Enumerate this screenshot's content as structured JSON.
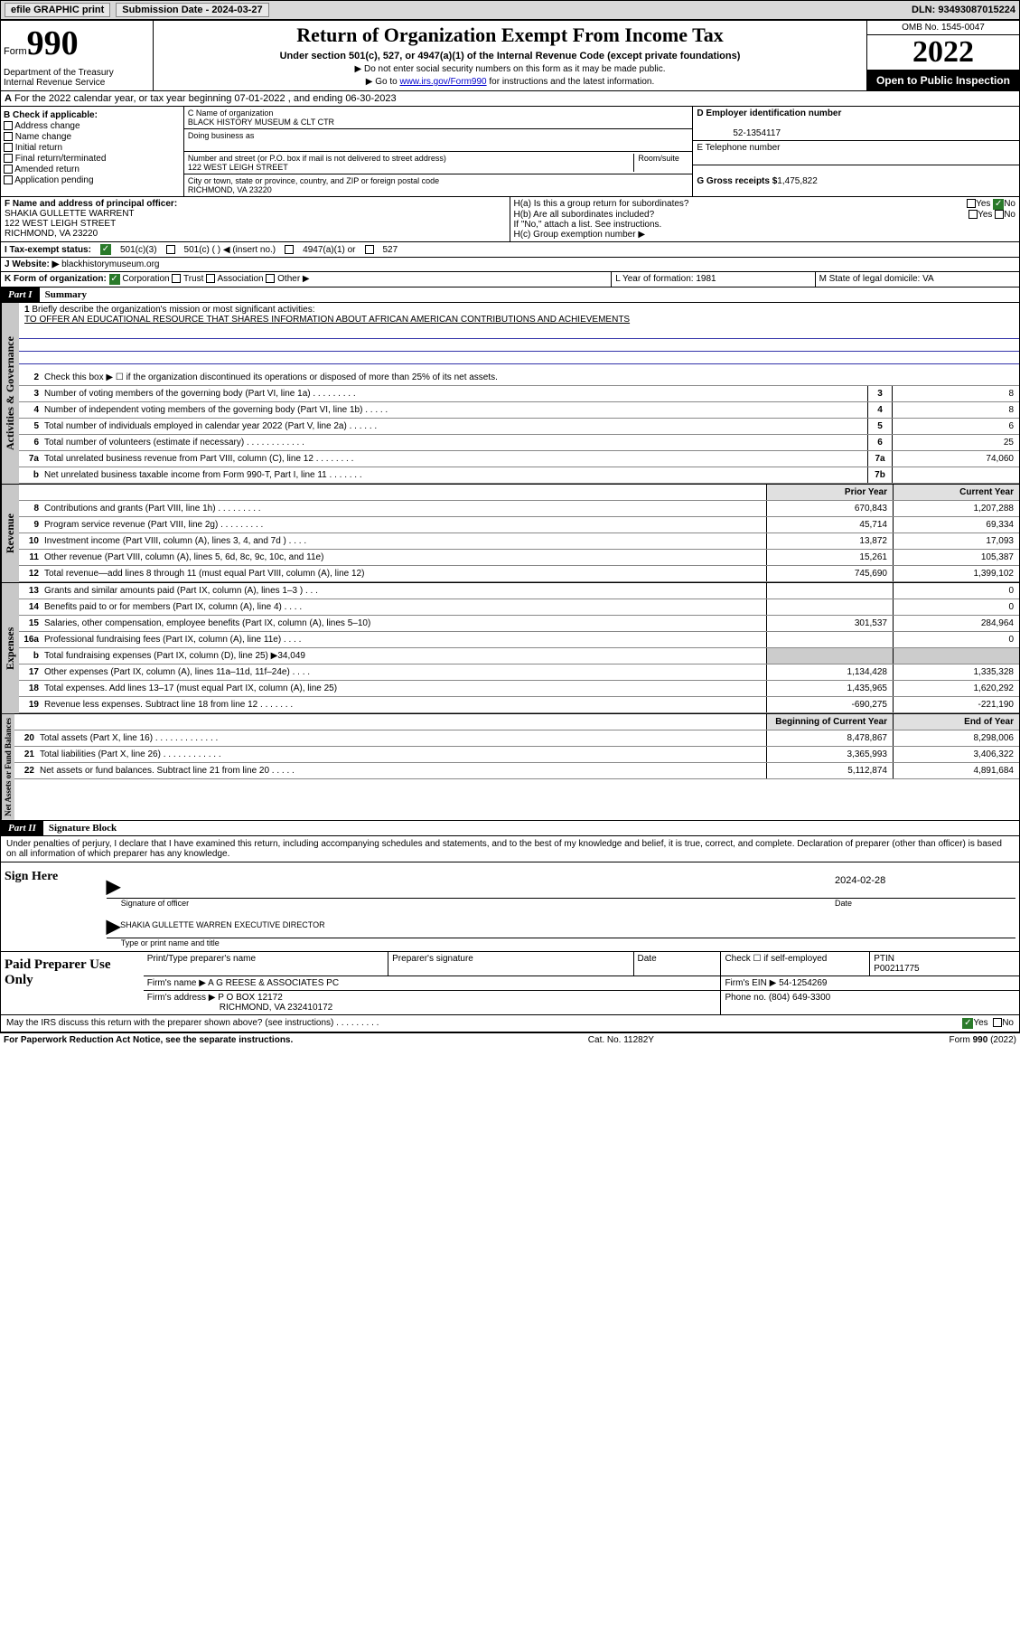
{
  "topbar": {
    "efile": "efile GRAPHIC print",
    "subdate_lbl": "Submission Date - 2024-03-27",
    "dln": "DLN: 93493087015224"
  },
  "header": {
    "form_prefix": "Form",
    "form_num": "990",
    "title": "Return of Organization Exempt From Income Tax",
    "sub": "Under section 501(c), 527, or 4947(a)(1) of the Internal Revenue Code (except private foundations)",
    "note1": "▶ Do not enter social security numbers on this form as it may be made public.",
    "note2_pre": "▶ Go to ",
    "note2_link": "www.irs.gov/Form990",
    "note2_post": " for instructions and the latest information.",
    "dept": "Department of the Treasury\nInternal Revenue Service",
    "omb": "OMB No. 1545-0047",
    "year": "2022",
    "open": "Open to Public Inspection"
  },
  "period": {
    "a": "A",
    "text": " For the 2022 calendar year, or tax year beginning 07-01-2022    , and ending 06-30-2023"
  },
  "secB": {
    "hdr": "B Check if applicable:",
    "items": [
      "Address change",
      "Name change",
      "Initial return",
      "Final return/terminated",
      "Amended return",
      "Application pending"
    ]
  },
  "secC": {
    "name_lbl": "C Name of organization",
    "name": "BLACK HISTORY MUSEUM & CLT CTR",
    "dba_lbl": "Doing business as",
    "addr_lbl": "Number and street (or P.O. box if mail is not delivered to street address)",
    "addr": "122 WEST LEIGH STREET",
    "room_lbl": "Room/suite",
    "city_lbl": "City or town, state or province, country, and ZIP or foreign postal code",
    "city": "RICHMOND, VA  23220"
  },
  "secD": {
    "ein_lbl": "D Employer identification number",
    "ein": "52-1354117",
    "tel_lbl": "E Telephone number",
    "gross_lbl": "G Gross receipts $",
    "gross": "1,475,822"
  },
  "secF": {
    "lbl": "F  Name and address of principal officer:",
    "name": "SHAKIA GULLETTE WARRENT",
    "addr1": "122 WEST LEIGH STREET",
    "addr2": "RICHMOND, VA  23220"
  },
  "secH": {
    "a": "H(a)  Is this a group return for subordinates?",
    "b": "H(b)  Are all subordinates included?",
    "bnote": "If \"No,\" attach a list. See instructions.",
    "c": "H(c)  Group exemption number ▶",
    "yes": "Yes",
    "no": "No"
  },
  "secI": {
    "lbl": "I     Tax-exempt status:",
    "o1": "501(c)(3)",
    "o2": "501(c) (  ) ◀ (insert no.)",
    "o3": "4947(a)(1) or",
    "o4": "527"
  },
  "secJ": {
    "lbl": "J    Website: ▶",
    "val": "  blackhistorymuseum.org"
  },
  "secK": {
    "lbl": "K Form of organization:",
    "o1": "Corporation",
    "o2": "Trust",
    "o3": "Association",
    "o4": "Other ▶"
  },
  "secL": {
    "lbl": "L Year of formation: 1981"
  },
  "secM": {
    "lbl": "M State of legal domicile: VA"
  },
  "part1": {
    "hd": "Part I",
    "t": "Summary"
  },
  "mission": {
    "n": "1",
    "lbl": "Briefly describe the organization's mission or most significant activities:",
    "txt": "TO OFFER AN EDUCATIONAL RESOURCE THAT SHARES INFORMATION ABOUT AFRICAN AMERICAN CONTRIBUTIONS AND ACHIEVEMENTS"
  },
  "gov": [
    {
      "n": "2",
      "t": "Check this box ▶ ☐  if the organization discontinued its operations or disposed of more than 25% of its net assets."
    },
    {
      "n": "3",
      "t": "Number of voting members of the governing body (Part VI, line 1a)   .    .    .    .    .    .    .    .    .",
      "b": "3",
      "v": "8"
    },
    {
      "n": "4",
      "t": "Number of independent voting members of the governing body (Part VI, line 1b)   .    .    .    .    .",
      "b": "4",
      "v": "8"
    },
    {
      "n": "5",
      "t": "Total number of individuals employed in calendar year 2022 (Part V, line 2a)   .    .    .    .    .    .",
      "b": "5",
      "v": "6"
    },
    {
      "n": "6",
      "t": "Total number of volunteers (estimate if necessary)   .    .    .    .    .    .    .    .    .    .    .    .",
      "b": "6",
      "v": "25"
    },
    {
      "n": "7a",
      "t": "Total unrelated business revenue from Part VIII, column (C), line 12   .    .    .    .    .    .    .    .",
      "b": "7a",
      "v": "74,060"
    },
    {
      "n": "b",
      "t": "Net unrelated business taxable income from Form 990-T, Part I, line 11   .    .    .    .    .    .    .",
      "b": "7b",
      "v": ""
    }
  ],
  "colhd": {
    "prior": "Prior Year",
    "curr": "Current Year"
  },
  "rev": [
    {
      "n": "8",
      "t": "Contributions and grants (Part VIII, line 1h)   .    .    .    .    .    .    .    .    .",
      "p": "670,843",
      "c": "1,207,288"
    },
    {
      "n": "9",
      "t": "Program service revenue (Part VIII, line 2g)   .    .    .    .    .    .    .    .    .",
      "p": "45,714",
      "c": "69,334"
    },
    {
      "n": "10",
      "t": "Investment income (Part VIII, column (A), lines 3, 4, and 7d )   .    .    .    .",
      "p": "13,872",
      "c": "17,093"
    },
    {
      "n": "11",
      "t": "Other revenue (Part VIII, column (A), lines 5, 6d, 8c, 9c, 10c, and 11e)",
      "p": "15,261",
      "c": "105,387"
    },
    {
      "n": "12",
      "t": "Total revenue—add lines 8 through 11 (must equal Part VIII, column (A), line 12)",
      "p": "745,690",
      "c": "1,399,102"
    }
  ],
  "exp": [
    {
      "n": "13",
      "t": "Grants and similar amounts paid (Part IX, column (A), lines 1–3 )   .    .    .",
      "p": "",
      "c": "0"
    },
    {
      "n": "14",
      "t": "Benefits paid to or for members (Part IX, column (A), line 4)   .    .    .    .",
      "p": "",
      "c": "0"
    },
    {
      "n": "15",
      "t": "Salaries, other compensation, employee benefits (Part IX, column (A), lines 5–10)",
      "p": "301,537",
      "c": "284,964"
    },
    {
      "n": "16a",
      "t": "Professional fundraising fees (Part IX, column (A), line 11e)   .    .    .    .",
      "p": "",
      "c": "0"
    },
    {
      "n": "b",
      "t": "Total fundraising expenses (Part IX, column (D), line 25) ▶34,049",
      "solo": true
    },
    {
      "n": "17",
      "t": "Other expenses (Part IX, column (A), lines 11a–11d, 11f–24e)  .    .    .    .",
      "p": "1,134,428",
      "c": "1,335,328"
    },
    {
      "n": "18",
      "t": "Total expenses. Add lines 13–17 (must equal Part IX, column (A), line 25)",
      "p": "1,435,965",
      "c": "1,620,292"
    },
    {
      "n": "19",
      "t": "Revenue less expenses. Subtract line 18 from line 12   .    .    .    .    .    .    .",
      "p": "-690,275",
      "c": "-221,190"
    }
  ],
  "colhd2": {
    "beg": "Beginning of Current Year",
    "end": "End of Year"
  },
  "net": [
    {
      "n": "20",
      "t": "Total assets (Part X, line 16)   .    .    .    .    .    .    .    .    .    .    .    .    .",
      "p": "8,478,867",
      "c": "8,298,006"
    },
    {
      "n": "21",
      "t": "Total liabilities (Part X, line 26)   .    .    .    .    .    .    .    .    .    .    .    .",
      "p": "3,365,993",
      "c": "3,406,322"
    },
    {
      "n": "22",
      "t": "Net assets or fund balances. Subtract line 21 from line 20   .    .    .    .    .",
      "p": "5,112,874",
      "c": "4,891,684"
    }
  ],
  "part2": {
    "hd": "Part II",
    "t": "Signature Block"
  },
  "sig": {
    "decl": "Under penalties of perjury, I declare that I have examined this return, including accompanying schedules and statements, and to the best of my knowledge and belief, it is true, correct, and complete. Declaration of preparer (other than officer) is based on all information of which preparer has any knowledge.",
    "sign_here": "Sign Here",
    "sig_of": "Signature of officer",
    "date_lbl": "Date",
    "date": "2024-02-28",
    "name": "SHAKIA GULLETTE WARREN  EXECUTIVE DIRECTOR",
    "name_lbl": "Type or print name and title"
  },
  "prep": {
    "lbl": "Paid Preparer Use Only",
    "h1": "Print/Type preparer's name",
    "h2": "Preparer's signature",
    "h3": "Date",
    "h4": "Check ☐ if self-employed",
    "h5": "PTIN",
    "ptin": "P00211775",
    "firm_lbl": "Firm's name   ▶",
    "firm": "A G REESE & ASSOCIATES PC",
    "ein_lbl": "Firm's EIN ▶",
    "ein": "54-1254269",
    "addr_lbl": "Firm's address ▶",
    "addr1": "P O BOX 12172",
    "addr2": "RICHMOND, VA  232410172",
    "phone_lbl": "Phone no.",
    "phone": "(804) 649-3300"
  },
  "irs": {
    "q": "May the IRS discuss this return with the preparer shown above? (see instructions)   .    .    .    .    .    .    .    .    .",
    "yes": "Yes",
    "no": "No"
  },
  "footer": {
    "l": "For Paperwork Reduction Act Notice, see the separate instructions.",
    "c": "Cat. No. 11282Y",
    "r": "Form 990 (2022)"
  },
  "vtabs": {
    "gov": "Activities & Governance",
    "rev": "Revenue",
    "exp": "Expenses",
    "net": "Net Assets or Fund Balances"
  }
}
